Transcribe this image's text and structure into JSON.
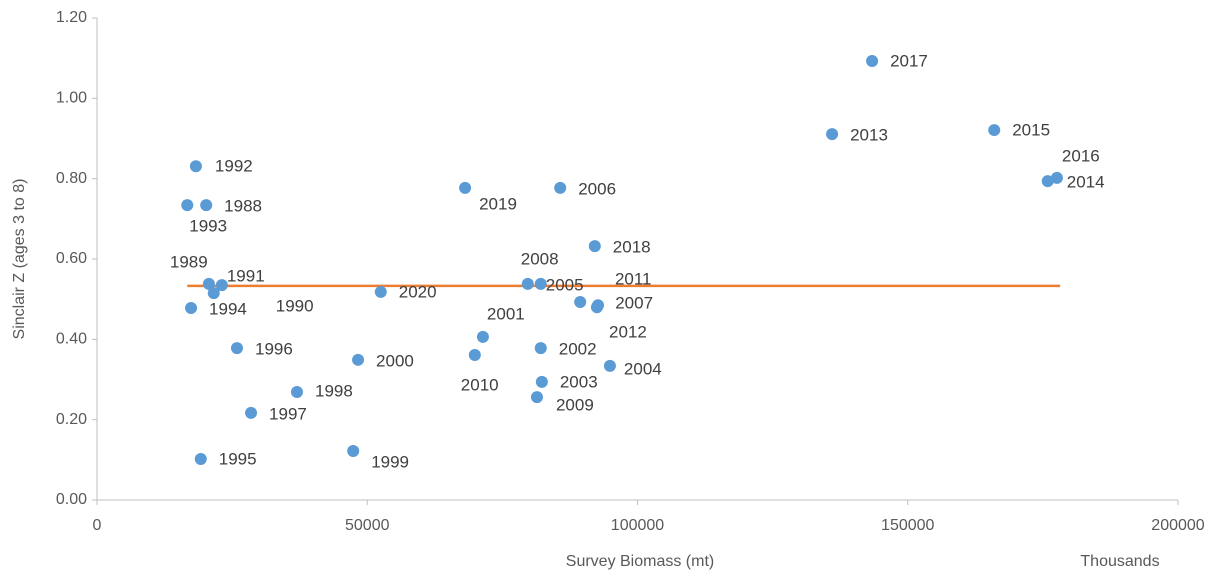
{
  "chart_data": {
    "type": "scatter",
    "x_label": "Survey Biomass (mt)",
    "x_display_unit": "Thousands",
    "y_label": "Sinclair Z (ages 3 to 8)",
    "xlim": [
      0,
      200000
    ],
    "xticks": [
      0,
      50000,
      100000,
      150000,
      200000
    ],
    "ylim": [
      0,
      1.2
    ],
    "yticks": [
      {
        "value": 0,
        "label": "0.00"
      },
      {
        "value": 0.2,
        "label": "0.20"
      },
      {
        "value": 0.4,
        "label": "0.40"
      },
      {
        "value": 0.6,
        "label": "0.60"
      },
      {
        "value": 0.8,
        "label": "0.80"
      },
      {
        "value": 1.0,
        "label": "1.00"
      },
      {
        "value": 1.2,
        "label": "1.20"
      }
    ],
    "color": "#5b9bd5",
    "point_labels": [
      "2017",
      "2013",
      "2015",
      "2016",
      "2014",
      "1992",
      "1993",
      "1988",
      "2019",
      "2006",
      "2018",
      "1989",
      "1991",
      "1990",
      "1994",
      "2020",
      "2008",
      "2005",
      "2007",
      "2011",
      "2012",
      "2001",
      "2010",
      "1996",
      "2000",
      "2002",
      "2004",
      "2003",
      "2009",
      "1998",
      "1997",
      "1995",
      "1999"
    ],
    "x": [
      143400,
      136000,
      166000,
      177600,
      175900,
      18300,
      16700,
      20200,
      68100,
      85700,
      92100,
      20700,
      23100,
      21600,
      17400,
      52500,
      79700,
      82100,
      89400,
      92500,
      92700,
      71400,
      69900,
      25900,
      48300,
      82100,
      94900,
      82300,
      81400,
      37000,
      28500,
      19200,
      47400
    ],
    "values": [
      1.093,
      0.911,
      0.921,
      0.802,
      0.794,
      0.831,
      0.734,
      0.734,
      0.777,
      0.777,
      0.632,
      0.538,
      0.535,
      0.515,
      0.478,
      0.518,
      0.538,
      0.538,
      0.493,
      0.48,
      0.485,
      0.406,
      0.361,
      0.378,
      0.349,
      0.378,
      0.334,
      0.294,
      0.256,
      0.269,
      0.217,
      0.102,
      0.122
    ],
    "reference_line": {
      "value": 0.533,
      "x": [
        16700,
        178200
      ],
      "color": "#ed7d31"
    }
  }
}
